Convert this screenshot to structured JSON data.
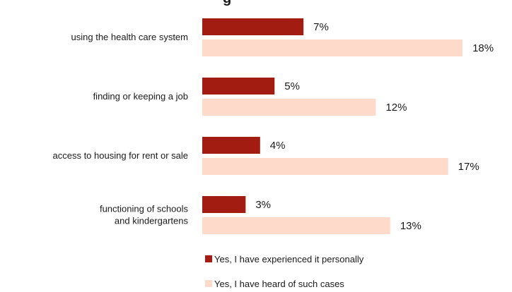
{
  "chart_data": {
    "type": "bar",
    "orientation": "horizontal",
    "title_visible_fragment": "g",
    "categories": [
      [
        "using the health care system"
      ],
      [
        "finding or keeping a job"
      ],
      [
        "access to housing for rent or sale"
      ],
      [
        "functioning of schools",
        "and kindergartens"
      ]
    ],
    "series": [
      {
        "name": "Yes, I have experienced it personally",
        "color": "#a31c12",
        "values": [
          7,
          5,
          4,
          3
        ]
      },
      {
        "name": "Yes, I have heard of such cases",
        "color": "#fddac9",
        "values": [
          18,
          12,
          17,
          13
        ]
      }
    ],
    "value_suffix": "%",
    "xlim": [
      0,
      20
    ],
    "grid": false,
    "legend_position": "bottom"
  }
}
